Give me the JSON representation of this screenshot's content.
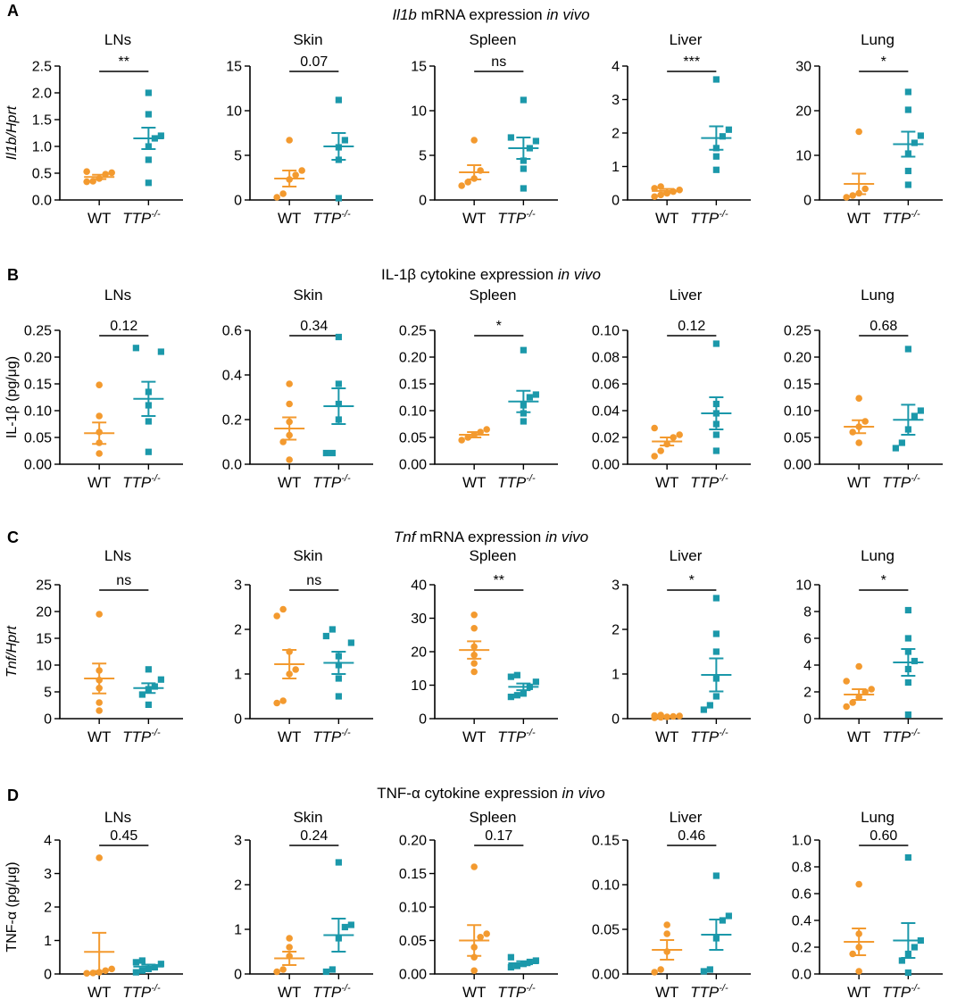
{
  "figure": {
    "x_categories": [
      "WT",
      "TTP",
      "-/-"
    ],
    "colors": {
      "wt": "#F39A2F",
      "ttp": "#1B98AA"
    },
    "rows": [
      {
        "letter": "A",
        "title_parts": [
          {
            "t": "Il1b",
            "i": true
          },
          {
            "t": " mRNA expression ",
            "i": false
          },
          {
            "t": "in vivo",
            "i": true
          }
        ],
        "ylabel_parts": [
          {
            "t": "Il1b/Hprt",
            "i": true
          }
        ]
      },
      {
        "letter": "B",
        "title_parts": [
          {
            "t": "IL-1β cytokine expression ",
            "i": false
          },
          {
            "t": "in vivo",
            "i": true
          }
        ],
        "ylabel_parts": [
          {
            "t": "IL-1β (pg/μg)",
            "i": false
          }
        ]
      },
      {
        "letter": "C",
        "title_parts": [
          {
            "t": "Tnf",
            "i": true
          },
          {
            "t": " mRNA expression ",
            "i": false
          },
          {
            "t": "in vivo",
            "i": true
          }
        ],
        "ylabel_parts": [
          {
            "t": "Tnf/Hprt",
            "i": true
          }
        ]
      },
      {
        "letter": "D",
        "title_parts": [
          {
            "t": "TNF-α cytokine expression ",
            "i": false
          },
          {
            "t": "in vivo",
            "i": true
          }
        ],
        "ylabel_parts": [
          {
            "t": "TNF-α  (pg/μg)",
            "i": false
          }
        ]
      }
    ]
  },
  "chart_data": [
    {
      "type": "scatter",
      "row": "A",
      "title": "LNs",
      "ylabel": "Il1b/Hprt",
      "ylim": [
        0,
        2.5
      ],
      "yticks": [
        "0.0",
        "0.5",
        "1.0",
        "1.5",
        "2.0",
        "2.5"
      ],
      "categories": [
        "WT",
        "TTP-/-"
      ],
      "significance": "**",
      "series": [
        {
          "name": "WT",
          "values": [
            0.34,
            0.35,
            0.4,
            0.48,
            0.51,
            0.53
          ],
          "mean": 0.43,
          "sem": 0.04
        },
        {
          "name": "TTP-/-",
          "values": [
            0.32,
            0.75,
            1.0,
            1.15,
            1.2,
            1.6,
            2.0
          ],
          "mean": 1.15,
          "sem": 0.2
        }
      ]
    },
    {
      "type": "scatter",
      "row": "A",
      "title": "Skin",
      "ylabel": "Il1b/Hprt",
      "ylim": [
        0,
        15
      ],
      "yticks": [
        "0",
        "5",
        "10",
        "15"
      ],
      "categories": [
        "WT",
        "TTP-/-"
      ],
      "significance": "0.07",
      "series": [
        {
          "name": "WT",
          "values": [
            0.3,
            0.7,
            2.3,
            2.8,
            3.3,
            6.7
          ],
          "mean": 2.4,
          "sem": 0.9
        },
        {
          "name": "TTP-/-",
          "values": [
            0.2,
            4.5,
            5.9,
            6.7,
            11.2
          ],
          "mean": 6.0,
          "sem": 1.5
        }
      ]
    },
    {
      "type": "scatter",
      "row": "A",
      "title": "Spleen",
      "ylabel": "Il1b/Hprt",
      "ylim": [
        0,
        15
      ],
      "yticks": [
        "0",
        "5",
        "10",
        "15"
      ],
      "categories": [
        "WT",
        "TTP-/-"
      ],
      "significance": "ns",
      "series": [
        {
          "name": "WT",
          "values": [
            1.6,
            2.0,
            2.4,
            3.3,
            6.7
          ],
          "mean": 3.1,
          "sem": 0.8
        },
        {
          "name": "TTP-/-",
          "values": [
            1.3,
            3.5,
            4.4,
            5.8,
            6.6,
            7.0,
            11.2
          ],
          "mean": 5.8,
          "sem": 1.2
        }
      ]
    },
    {
      "type": "scatter",
      "row": "A",
      "title": "Liver",
      "ylabel": "Il1b/Hprt",
      "ylim": [
        0,
        4
      ],
      "yticks": [
        "0",
        "1",
        "2",
        "3",
        "4"
      ],
      "categories": [
        "WT",
        "TTP-/-"
      ],
      "significance": "***",
      "series": [
        {
          "name": "WT",
          "values": [
            0.1,
            0.15,
            0.2,
            0.25,
            0.3,
            0.35,
            0.4
          ],
          "mean": 0.27,
          "sem": 0.06
        },
        {
          "name": "TTP-/-",
          "values": [
            0.9,
            1.3,
            1.55,
            1.9,
            2.1,
            3.6
          ],
          "mean": 1.85,
          "sem": 0.35
        }
      ]
    },
    {
      "type": "scatter",
      "row": "A",
      "title": "Lung",
      "ylabel": "Il1b/Hprt",
      "ylim": [
        0,
        30
      ],
      "yticks": [
        "0",
        "10",
        "20",
        "30"
      ],
      "categories": [
        "WT",
        "TTP-/-"
      ],
      "significance": "*",
      "series": [
        {
          "name": "WT",
          "values": [
            0.6,
            1.0,
            1.5,
            2.5,
            15.3
          ],
          "mean": 3.6,
          "sem": 2.3
        },
        {
          "name": "TTP-/-",
          "values": [
            3.4,
            6.5,
            10.4,
            12.8,
            14.4,
            20.2,
            24.2
          ],
          "mean": 12.5,
          "sem": 2.8
        }
      ]
    },
    {
      "type": "scatter",
      "row": "B",
      "title": "LNs",
      "ylabel": "IL-1β (pg/μg)",
      "ylim": [
        0,
        0.25
      ],
      "yticks": [
        "0.00",
        "0.05",
        "0.10",
        "0.15",
        "0.20",
        "0.25"
      ],
      "categories": [
        "WT",
        "TTP-/-"
      ],
      "significance": "0.12",
      "series": [
        {
          "name": "WT",
          "values": [
            0.02,
            0.04,
            0.06,
            0.09,
            0.148
          ],
          "mean": 0.058,
          "sem": 0.02
        },
        {
          "name": "TTP-/-",
          "values": [
            0.023,
            0.08,
            0.11,
            0.135,
            0.21,
            0.217
          ],
          "mean": 0.122,
          "sem": 0.032
        }
      ]
    },
    {
      "type": "scatter",
      "row": "B",
      "title": "Skin",
      "ylabel": "IL-1β (pg/μg)",
      "ylim": [
        0,
        0.6
      ],
      "yticks": [
        "0.0",
        "0.2",
        "0.4",
        "0.6"
      ],
      "categories": [
        "WT",
        "TTP-/-"
      ],
      "significance": "0.34",
      "series": [
        {
          "name": "WT",
          "values": [
            0.02,
            0.1,
            0.13,
            0.19,
            0.27,
            0.36
          ],
          "mean": 0.16,
          "sem": 0.05
        },
        {
          "name": "TTP-/-",
          "values": [
            0.05,
            0.05,
            0.2,
            0.27,
            0.36,
            0.57
          ],
          "mean": 0.26,
          "sem": 0.08
        }
      ]
    },
    {
      "type": "scatter",
      "row": "B",
      "title": "Spleen",
      "ylabel": "IL-1β (pg/μg)",
      "ylim": [
        0,
        0.25
      ],
      "yticks": [
        "0.00",
        "0.05",
        "0.10",
        "0.15",
        "0.20",
        "0.25"
      ],
      "categories": [
        "WT",
        "TTP-/-"
      ],
      "significance": "*",
      "series": [
        {
          "name": "WT",
          "values": [
            0.045,
            0.05,
            0.055,
            0.06,
            0.065
          ],
          "mean": 0.055,
          "sem": 0.005
        },
        {
          "name": "TTP-/-",
          "values": [
            0.08,
            0.095,
            0.11,
            0.125,
            0.13,
            0.213
          ],
          "mean": 0.117,
          "sem": 0.02
        }
      ]
    },
    {
      "type": "scatter",
      "row": "B",
      "title": "Liver",
      "ylabel": "IL-1β (pg/μg)",
      "ylim": [
        0,
        0.1
      ],
      "yticks": [
        "0.00",
        "0.02",
        "0.04",
        "0.06",
        "0.08",
        "0.10"
      ],
      "categories": [
        "WT",
        "TTP-/-"
      ],
      "significance": "0.12",
      "series": [
        {
          "name": "WT",
          "values": [
            0.006,
            0.01,
            0.015,
            0.02,
            0.022,
            0.027
          ],
          "mean": 0.017,
          "sem": 0.003
        },
        {
          "name": "TTP-/-",
          "values": [
            0.01,
            0.022,
            0.03,
            0.038,
            0.045,
            0.09
          ],
          "mean": 0.038,
          "sem": 0.012
        }
      ]
    },
    {
      "type": "scatter",
      "row": "B",
      "title": "Lung",
      "ylabel": "IL-1β (pg/μg)",
      "ylim": [
        0,
        0.25
      ],
      "yticks": [
        "0.00",
        "0.05",
        "0.10",
        "0.15",
        "0.20",
        "0.25"
      ],
      "categories": [
        "WT",
        "TTP-/-"
      ],
      "significance": "0.68",
      "series": [
        {
          "name": "WT",
          "values": [
            0.04,
            0.06,
            0.07,
            0.08,
            0.123
          ],
          "mean": 0.07,
          "sem": 0.012
        },
        {
          "name": "TTP-/-",
          "values": [
            0.03,
            0.04,
            0.065,
            0.09,
            0.1,
            0.215
          ],
          "mean": 0.083,
          "sem": 0.028
        }
      ]
    },
    {
      "type": "scatter",
      "row": "C",
      "title": "LNs",
      "ylabel": "Tnf/Hprt",
      "ylim": [
        0,
        25
      ],
      "yticks": [
        "0",
        "5",
        "10",
        "15",
        "20",
        "25"
      ],
      "categories": [
        "WT",
        "TTP-/-"
      ],
      "significance": "ns",
      "series": [
        {
          "name": "WT",
          "values": [
            1.5,
            3.0,
            5.7,
            7.2,
            9.0,
            19.5
          ],
          "mean": 7.5,
          "sem": 2.8
        },
        {
          "name": "TTP-/-",
          "values": [
            2.6,
            4.5,
            5.5,
            6.0,
            7.3,
            9.2
          ],
          "mean": 5.7,
          "sem": 0.9
        }
      ]
    },
    {
      "type": "scatter",
      "row": "C",
      "title": "Skin",
      "ylabel": "Tnf/Hprt",
      "ylim": [
        0,
        3
      ],
      "yticks": [
        "0",
        "1",
        "2",
        "3"
      ],
      "categories": [
        "WT",
        "TTP-/-"
      ],
      "significance": "ns",
      "series": [
        {
          "name": "WT",
          "values": [
            0.35,
            0.4,
            1.0,
            1.1,
            1.5,
            2.3,
            2.45
          ],
          "mean": 1.22,
          "sem": 0.32
        },
        {
          "name": "TTP-/-",
          "values": [
            0.5,
            0.9,
            1.2,
            1.4,
            1.7,
            1.85,
            2.0
          ],
          "mean": 1.25,
          "sem": 0.25
        }
      ]
    },
    {
      "type": "scatter",
      "row": "C",
      "title": "Spleen",
      "ylabel": "Tnf/Hprt",
      "ylim": [
        0,
        40
      ],
      "yticks": [
        "0",
        "10",
        "20",
        "30",
        "40"
      ],
      "categories": [
        "WT",
        "TTP-/-"
      ],
      "significance": "**",
      "series": [
        {
          "name": "WT",
          "values": [
            14.0,
            16.5,
            19.0,
            21.5,
            27.0,
            31.0
          ],
          "mean": 20.5,
          "sem": 2.6
        },
        {
          "name": "TTP-/-",
          "values": [
            6.5,
            7.0,
            7.5,
            9.5,
            11.0,
            12.5,
            13.0
          ],
          "mean": 9.5,
          "sem": 1.0
        }
      ]
    },
    {
      "type": "scatter",
      "row": "C",
      "title": "Liver",
      "ylabel": "Tnf/Hprt",
      "ylim": [
        0,
        3
      ],
      "yticks": [
        "0",
        "1",
        "2",
        "3"
      ],
      "categories": [
        "WT",
        "TTP-/-"
      ],
      "significance": "*",
      "series": [
        {
          "name": "WT",
          "values": [
            0.02,
            0.03,
            0.04,
            0.05,
            0.06,
            0.07,
            0.08
          ],
          "mean": 0.05,
          "sem": 0.01
        },
        {
          "name": "TTP-/-",
          "values": [
            0.2,
            0.3,
            0.5,
            0.9,
            1.5,
            1.9,
            2.7
          ],
          "mean": 0.98,
          "sem": 0.37
        }
      ]
    },
    {
      "type": "scatter",
      "row": "C",
      "title": "Lung",
      "ylabel": "Tnf/Hprt",
      "ylim": [
        0,
        10
      ],
      "yticks": [
        "0",
        "2",
        "4",
        "6",
        "8",
        "10"
      ],
      "categories": [
        "WT",
        "TTP-/-"
      ],
      "significance": "*",
      "series": [
        {
          "name": "WT",
          "values": [
            0.9,
            1.2,
            1.6,
            2.0,
            2.2,
            2.8,
            3.9
          ],
          "mean": 1.8,
          "sem": 0.4
        },
        {
          "name": "TTP-/-",
          "values": [
            0.3,
            2.7,
            3.7,
            4.3,
            5.0,
            6.0,
            8.1
          ],
          "mean": 4.2,
          "sem": 1.0
        }
      ]
    },
    {
      "type": "scatter",
      "row": "D",
      "title": "LNs",
      "ylabel": "TNF-α  (pg/μg)",
      "ylim": [
        0,
        4
      ],
      "yticks": [
        "0",
        "1",
        "2",
        "3",
        "4"
      ],
      "categories": [
        "WT",
        "TTP-/-"
      ],
      "significance": "0.45",
      "series": [
        {
          "name": "WT",
          "values": [
            0.02,
            0.03,
            0.05,
            0.1,
            0.15,
            3.47
          ],
          "mean": 0.66,
          "sem": 0.57
        },
        {
          "name": "TTP-/-",
          "values": [
            0.05,
            0.1,
            0.15,
            0.2,
            0.3,
            0.35,
            0.4
          ],
          "mean": 0.22,
          "sem": 0.06
        }
      ]
    },
    {
      "type": "scatter",
      "row": "D",
      "title": "Skin",
      "ylabel": "TNF-α  (pg/μg)",
      "ylim": [
        0,
        3
      ],
      "yticks": [
        "0",
        "1",
        "2",
        "3"
      ],
      "categories": [
        "WT",
        "TTP-/-"
      ],
      "significance": "0.24",
      "series": [
        {
          "name": "WT",
          "values": [
            0.05,
            0.1,
            0.4,
            0.6,
            0.8
          ],
          "mean": 0.35,
          "sem": 0.15
        },
        {
          "name": "TTP-/-",
          "values": [
            0.05,
            0.1,
            0.8,
            1.05,
            1.1,
            2.5
          ],
          "mean": 0.87,
          "sem": 0.37
        }
      ]
    },
    {
      "type": "scatter",
      "row": "D",
      "title": "Spleen",
      "ylabel": "TNF-α  (pg/μg)",
      "ylim": [
        0,
        0.2
      ],
      "yticks": [
        "0.00",
        "0.05",
        "0.10",
        "0.15",
        "0.20"
      ],
      "categories": [
        "WT",
        "TTP-/-"
      ],
      "significance": "0.17",
      "series": [
        {
          "name": "WT",
          "values": [
            0.005,
            0.025,
            0.04,
            0.055,
            0.06,
            0.16
          ],
          "mean": 0.05,
          "sem": 0.023
        },
        {
          "name": "TTP-/-",
          "values": [
            0.01,
            0.012,
            0.015,
            0.018,
            0.02,
            0.025
          ],
          "mean": 0.016,
          "sem": 0.003
        }
      ]
    },
    {
      "type": "scatter",
      "row": "D",
      "title": "Liver",
      "ylabel": "TNF-α  (pg/μg)",
      "ylim": [
        0,
        0.15
      ],
      "yticks": [
        "0.00",
        "0.05",
        "0.10",
        "0.15"
      ],
      "categories": [
        "WT",
        "TTP-/-"
      ],
      "significance": "0.46",
      "series": [
        {
          "name": "WT",
          "values": [
            0.002,
            0.005,
            0.025,
            0.045,
            0.055
          ],
          "mean": 0.027,
          "sem": 0.011
        },
        {
          "name": "TTP-/-",
          "values": [
            0.003,
            0.005,
            0.04,
            0.06,
            0.065,
            0.11
          ],
          "mean": 0.044,
          "sem": 0.017
        }
      ]
    },
    {
      "type": "scatter",
      "row": "D",
      "title": "Lung",
      "ylabel": "TNF-α  (pg/μg)",
      "ylim": [
        0,
        1.0
      ],
      "yticks": [
        "0.0",
        "0.2",
        "0.4",
        "0.6",
        "0.8",
        "1.0"
      ],
      "categories": [
        "WT",
        "TTP-/-"
      ],
      "significance": "0.60",
      "series": [
        {
          "name": "WT",
          "values": [
            0.02,
            0.15,
            0.2,
            0.3,
            0.67
          ],
          "mean": 0.24,
          "sem": 0.1
        },
        {
          "name": "TTP-/-",
          "values": [
            0.01,
            0.1,
            0.15,
            0.2,
            0.25,
            0.87
          ],
          "mean": 0.25,
          "sem": 0.13
        }
      ]
    }
  ]
}
